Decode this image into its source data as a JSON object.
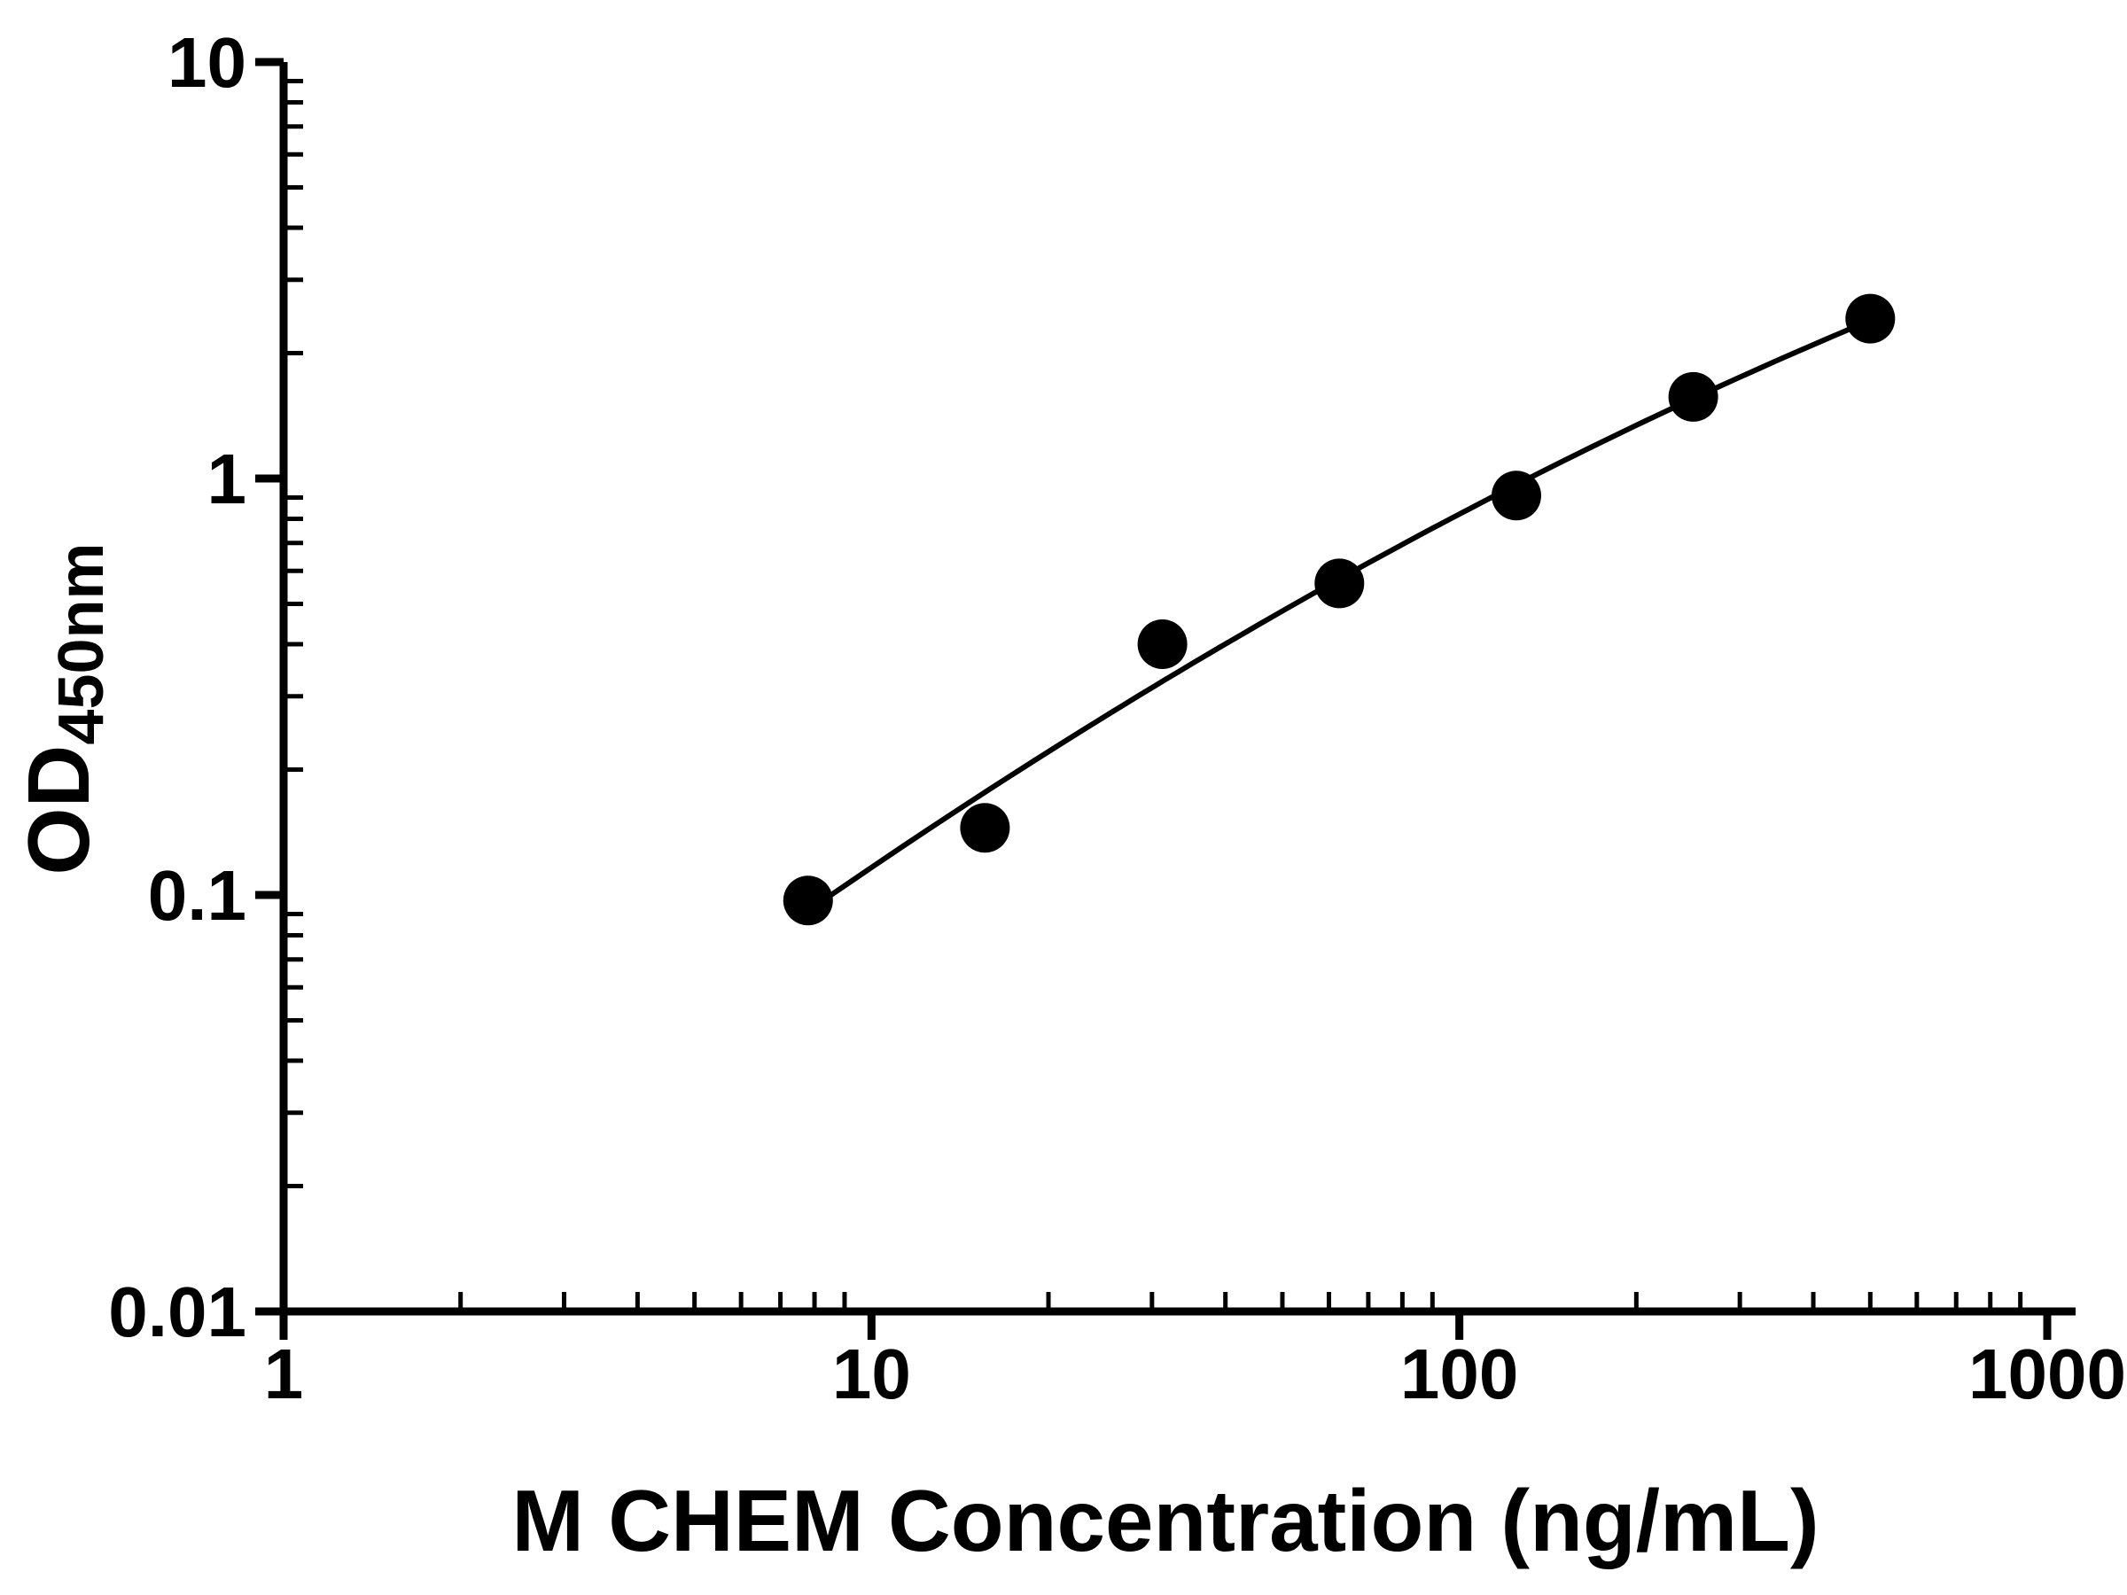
{
  "chart_data": {
    "type": "scatter",
    "title": "",
    "xlabel": "M CHEM Concentration (ng/mL)",
    "ylabel": "OD",
    "ylabel_subscript": "450nm",
    "x_scale": "log",
    "y_scale": "log",
    "xlim": [
      1,
      1000
    ],
    "ylim": [
      0.01,
      10
    ],
    "x_ticks": [
      1,
      10,
      100,
      1000
    ],
    "x_tick_labels": [
      "1",
      "10",
      "100",
      "1000"
    ],
    "y_ticks": [
      10,
      1,
      0.1,
      0.01
    ],
    "y_tick_labels": [
      "10",
      "1",
      "0.1",
      "0.01"
    ],
    "grid": false,
    "legend": "none",
    "fit_curve": true,
    "series": [
      {
        "marker": "filled-circle",
        "color": "#000000",
        "x": [
          7.8,
          15.6,
          31.25,
          62.5,
          125,
          250,
          500
        ],
        "y": [
          0.097,
          0.145,
          0.4,
          0.56,
          0.91,
          1.57,
          2.42
        ]
      }
    ]
  },
  "colors": {
    "foreground": "#000000",
    "background": "#ffffff"
  }
}
